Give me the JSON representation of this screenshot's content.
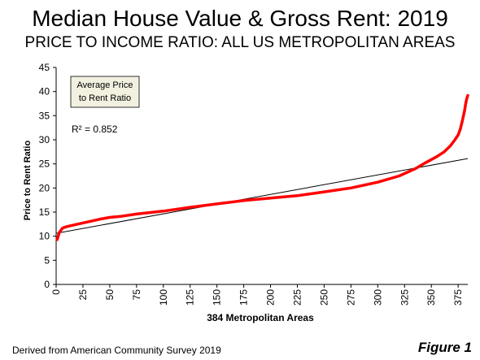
{
  "header": {
    "title": "Median House Value & Gross Rent: 2019",
    "subtitle": "PRICE TO INCOME RATIO: ALL US METROPOLITAN AREAS"
  },
  "footer": {
    "source": "Derived from American Community Survey 2019",
    "figure_label": "Figure 1"
  },
  "chart_data": {
    "type": "line",
    "xlabel": "384 Metropolitan Areas",
    "ylabel": "Price to Rent Ratio",
    "xlim": [
      0,
      384
    ],
    "ylim": [
      0,
      45
    ],
    "x_ticks": [
      0,
      25,
      50,
      75,
      100,
      125,
      150,
      175,
      200,
      225,
      250,
      275,
      300,
      325,
      350,
      375
    ],
    "y_ticks": [
      0,
      5,
      10,
      15,
      20,
      25,
      30,
      35,
      40,
      45
    ],
    "grid": false,
    "legend_box": "Average Price to Rent Ratio",
    "r_squared": "R² = 0.852",
    "colors": {
      "series": "#ff0000",
      "trend": "#000000",
      "box_fill": "#f2f0df"
    },
    "series": [
      {
        "x": [
          1,
          3,
          6,
          10,
          20,
          30,
          40,
          50,
          60,
          75,
          100,
          125,
          150,
          175,
          200,
          225,
          250,
          275,
          300,
          320,
          335,
          345,
          355,
          362,
          368,
          372,
          375,
          377,
          379,
          381,
          382,
          383,
          384
        ],
        "y": [
          9.3,
          10.8,
          11.7,
          12.0,
          12.5,
          13.0,
          13.5,
          13.9,
          14.1,
          14.6,
          15.2,
          16.0,
          16.7,
          17.4,
          17.9,
          18.4,
          19.2,
          20.0,
          21.2,
          22.5,
          24.0,
          25.3,
          26.5,
          27.5,
          28.8,
          30.0,
          31.0,
          32.2,
          34.0,
          36.0,
          37.5,
          38.5,
          39.2
        ]
      }
    ],
    "trendline": {
      "x": [
        0,
        384
      ],
      "y": [
        10.6,
        26.1
      ]
    }
  }
}
